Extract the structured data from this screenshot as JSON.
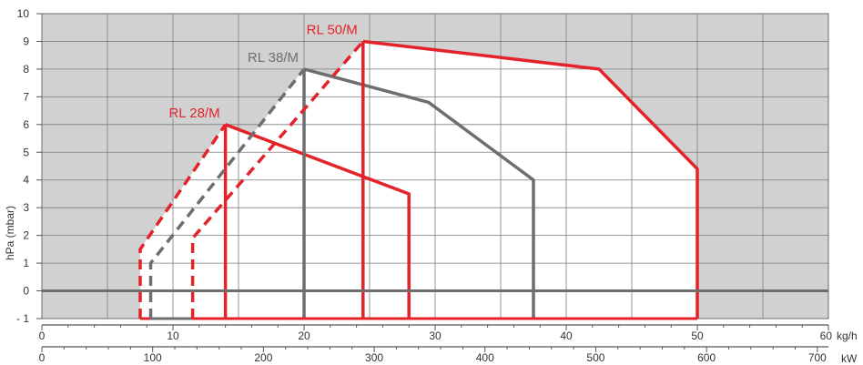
{
  "chart_data": {
    "type": "area",
    "title": "",
    "ylabel": "hPa (mbar)",
    "ylim": [
      -1,
      10
    ],
    "yticks": [
      "- 1",
      "0",
      "1",
      "2",
      "3",
      "4",
      "5",
      "6",
      "7",
      "8",
      "9",
      "10"
    ],
    "x_primary": {
      "unit": "kg/h",
      "range": [
        0,
        60
      ],
      "ticks": [
        "0",
        "10",
        "20",
        "30",
        "40",
        "50",
        "60"
      ]
    },
    "x_secondary": {
      "unit": "kW",
      "range": [
        0,
        710
      ],
      "ticks": [
        "0",
        "100",
        "200",
        "300",
        "400",
        "500",
        "600",
        "700"
      ]
    },
    "grid": true,
    "background_color": "#d1d1d2",
    "series": [
      {
        "name": "RL 28/M",
        "color": "#e4222a",
        "min_boundary": [
          [
            7.5,
            -1
          ],
          [
            7.5,
            1.5
          ],
          [
            14,
            6
          ]
        ],
        "envelope": [
          [
            14,
            6
          ],
          [
            28,
            3.5
          ],
          [
            28,
            -1
          ]
        ],
        "vertical_at": 14
      },
      {
        "name": "RL 38/M",
        "color": "#6e6e6e",
        "min_boundary": [
          [
            8.3,
            -1
          ],
          [
            8.3,
            1
          ],
          [
            20,
            8
          ]
        ],
        "envelope": [
          [
            20,
            8
          ],
          [
            29.5,
            6.8
          ],
          [
            37.5,
            4
          ],
          [
            37.5,
            -1
          ]
        ],
        "vertical_at": 20
      },
      {
        "name": "RL 50/M",
        "color": "#e4222a",
        "min_boundary": [
          [
            11.5,
            -1
          ],
          [
            11.5,
            1.9
          ],
          [
            24.5,
            9
          ]
        ],
        "envelope": [
          [
            24.5,
            9
          ],
          [
            42.5,
            8
          ],
          [
            50,
            4.4
          ],
          [
            50,
            -1
          ]
        ],
        "vertical_at": 24.5
      }
    ]
  }
}
